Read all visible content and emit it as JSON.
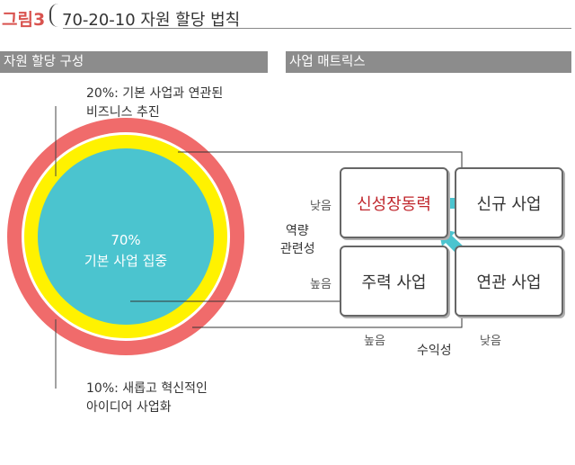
{
  "header": {
    "figure_label": "그림3",
    "title": "70-20-10 자원 할당 법칙"
  },
  "left_section": {
    "title": "자원 할당 구성",
    "top_note_line1": "20%: 기본 사업과 연관된",
    "top_note_line2": "비즈니스 추진",
    "center_pct": "70%",
    "center_text": "기본 사업 집중",
    "bottom_note_line1": "10%: 새롭고 혁신적인",
    "bottom_note_line2": "아이디어 사업화"
  },
  "right_section": {
    "title": "사업 매트릭스",
    "y_axis_line1": "역량",
    "y_axis_line2": "관련성",
    "y_low": "낮음",
    "y_high": "높음",
    "x_axis": "수익성",
    "x_high": "높음",
    "x_low": "낮음",
    "box_top_left": "신성장동력",
    "box_top_right": "신규 사업",
    "box_bottom_left": "주력 사업",
    "box_bottom_right": "연관 사업"
  },
  "colors": {
    "outer_ring": "#f06b6b",
    "middle_ring": "#fff200",
    "core": "#4bc4cf",
    "arrow": "#4bc4cf",
    "highlight_text": "#c0272d",
    "section_bar": "#8c8c8c"
  }
}
